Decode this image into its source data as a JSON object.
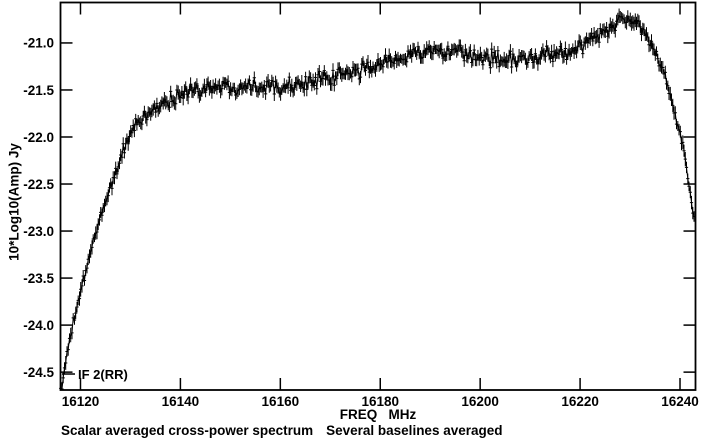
{
  "figure": {
    "background_color": "#ffffff",
    "line_color": "#000000",
    "text_color": "#000000"
  },
  "chart_data": {
    "type": "line",
    "title": "",
    "xlabel": "FREQ   MHz",
    "ylabel": "10*Log10(Amp) Jy",
    "caption_left": "Scalar averaged cross-power spectrum",
    "caption_right": "Several baselines averaged",
    "if_marker": {
      "label": "IF 2(RR)",
      "freq": 16116.3,
      "value": -24.52
    },
    "xlim": [
      16116.0,
      16243.1
    ],
    "ylim": [
      -24.69,
      -20.57
    ],
    "x_ticks": [
      16120,
      16140,
      16160,
      16180,
      16200,
      16220,
      16240
    ],
    "x_tick_labels": [
      "16120",
      "16140",
      "16160",
      "16180",
      "16200",
      "16220",
      "16240"
    ],
    "y_ticks": [
      -21.0,
      -21.5,
      -22.0,
      -22.5,
      -23.0,
      -23.5,
      -24.0,
      -24.5
    ],
    "y_tick_labels": [
      "-21.0",
      "-21.5",
      "-22.0",
      "-22.5",
      "-23.0",
      "-23.5",
      "-24.0",
      "-24.5"
    ],
    "grid": false,
    "legend": null,
    "marker": "point-with-vertical-errorbar",
    "channel_step_mhz": 0.25,
    "noise_sigma": 0.042,
    "errorbar_half": 0.048,
    "random_seed": 1234,
    "envelope": [
      [
        16116.0,
        -24.7
      ],
      [
        16116.5,
        -24.55
      ],
      [
        16117.0,
        -24.42
      ],
      [
        16118.0,
        -24.12
      ],
      [
        16119.0,
        -23.88
      ],
      [
        16120.0,
        -23.65
      ],
      [
        16121.5,
        -23.35
      ],
      [
        16123.0,
        -23.02
      ],
      [
        16124.3,
        -22.8
      ],
      [
        16125.6,
        -22.58
      ],
      [
        16126.6,
        -22.44
      ],
      [
        16127.5,
        -22.32
      ],
      [
        16129.0,
        -22.06
      ],
      [
        16130.5,
        -21.94
      ],
      [
        16132.0,
        -21.84
      ],
      [
        16134.0,
        -21.74
      ],
      [
        16136.0,
        -21.66
      ],
      [
        16138.0,
        -21.6
      ],
      [
        16140.0,
        -21.55
      ],
      [
        16143.0,
        -21.49
      ],
      [
        16146.0,
        -21.46
      ],
      [
        16150.0,
        -21.47
      ],
      [
        16154.0,
        -21.44
      ],
      [
        16158.0,
        -21.46
      ],
      [
        16162.0,
        -21.44
      ],
      [
        16166.0,
        -21.42
      ],
      [
        16170.0,
        -21.38
      ],
      [
        16174.0,
        -21.32
      ],
      [
        16178.0,
        -21.26
      ],
      [
        16182.0,
        -21.18
      ],
      [
        16186.0,
        -21.12
      ],
      [
        16190.0,
        -21.09
      ],
      [
        16194.0,
        -21.11
      ],
      [
        16198.0,
        -21.14
      ],
      [
        16202.0,
        -21.16
      ],
      [
        16206.0,
        -21.17
      ],
      [
        16210.0,
        -21.17
      ],
      [
        16214.0,
        -21.14
      ],
      [
        16217.0,
        -21.1
      ],
      [
        16220.0,
        -21.04
      ],
      [
        16222.5,
        -20.96
      ],
      [
        16225.0,
        -20.88
      ],
      [
        16227.0,
        -20.79
      ],
      [
        16228.6,
        -20.73
      ],
      [
        16230.0,
        -20.76
      ],
      [
        16231.5,
        -20.81
      ],
      [
        16233.0,
        -20.9
      ],
      [
        16234.5,
        -21.02
      ],
      [
        16236.0,
        -21.2
      ],
      [
        16237.5,
        -21.45
      ],
      [
        16239.0,
        -21.75
      ],
      [
        16240.5,
        -22.08
      ],
      [
        16241.5,
        -22.4
      ],
      [
        16242.3,
        -22.7
      ],
      [
        16242.7,
        -22.86
      ],
      [
        16243.0,
        -22.9
      ]
    ]
  }
}
